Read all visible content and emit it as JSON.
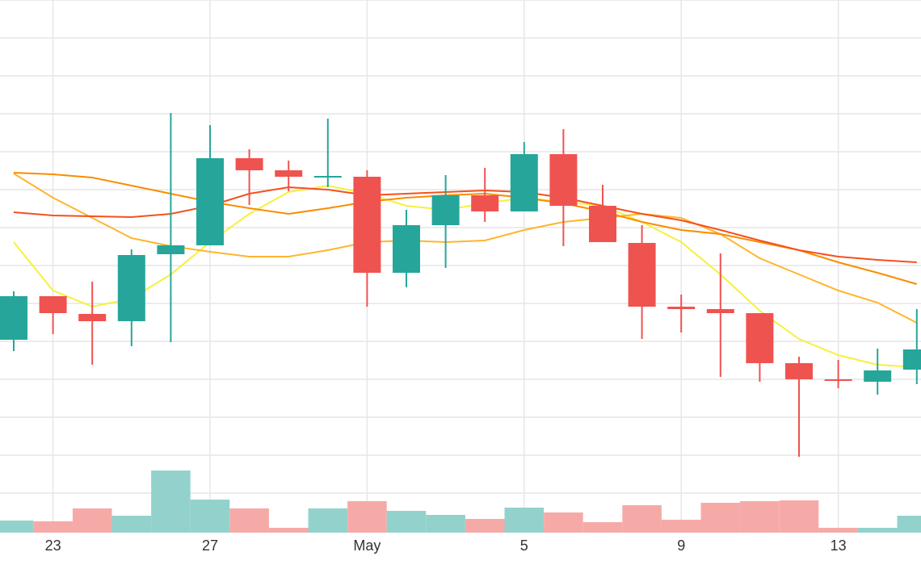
{
  "chart_data": {
    "type": "candlestick",
    "categories": [
      null,
      "23",
      null,
      null,
      null,
      "27",
      null,
      null,
      null,
      "May",
      null,
      null,
      null,
      "5",
      null,
      null,
      null,
      "9",
      null,
      null,
      null,
      "13",
      null,
      null
    ],
    "open": [
      237,
      291,
      269,
      260,
      343,
      354,
      462,
      447,
      438,
      439,
      320,
      379,
      416,
      396,
      467,
      403,
      357,
      278,
      275,
      270,
      208,
      188,
      185,
      200
    ],
    "high": [
      297,
      291,
      309,
      349,
      518,
      503,
      473,
      459,
      511,
      447,
      398,
      441,
      450,
      482,
      498,
      429,
      379,
      293,
      344,
      270,
      216,
      212,
      226,
      275
    ],
    "low": [
      223,
      244,
      206,
      229,
      234,
      354,
      404,
      421,
      426,
      278,
      302,
      326,
      383,
      396,
      353,
      358,
      238,
      246,
      191,
      185,
      92,
      177,
      169,
      182
    ],
    "close": [
      291,
      270,
      260,
      342,
      354,
      462,
      447,
      439,
      440,
      320,
      379,
      416,
      396,
      467,
      403,
      358,
      278,
      275,
      270,
      208,
      188,
      186,
      199,
      225
    ],
    "volume": [
      15,
      14,
      30,
      21,
      77,
      41,
      30,
      6,
      30,
      39,
      27,
      22,
      17,
      31,
      25,
      13,
      34,
      16,
      37,
      39,
      40,
      6,
      6,
      21
    ],
    "up_color": "#26a69a",
    "down_color": "#ef5350",
    "volume_up_color": "#93d2cc",
    "volume_down_color": "#f6aaa7",
    "lines": [
      {
        "color": "#f7f03c",
        "values": [
          358,
          298,
          278,
          288,
          318,
          358,
          393,
          420,
          428,
          418,
          403,
          398,
          406,
          413,
          408,
          403,
          383,
          358,
          318,
          273,
          238,
          218,
          206,
          203
        ]
      },
      {
        "color": "#ffb52e",
        "values": [
          443,
          413,
          388,
          363,
          353,
          346,
          340,
          340,
          348,
          358,
          360,
          358,
          360,
          373,
          383,
          388,
          393,
          388,
          368,
          338,
          318,
          298,
          283,
          258
        ]
      },
      {
        "color": "#fb8c00",
        "values": [
          444,
          442,
          438,
          428,
          418,
          408,
          400,
          393,
          400,
          408,
          413,
          416,
          418,
          413,
          406,
          396,
          383,
          373,
          368,
          358,
          348,
          333,
          320,
          306
        ]
      },
      {
        "color": "#f4511e",
        "values": [
          395,
          391,
          390,
          389,
          393,
          403,
          418,
          426,
          423,
          416,
          418,
          420,
          422,
          420,
          413,
          403,
          393,
          385,
          373,
          360,
          348,
          340,
          336,
          333
        ]
      }
    ],
    "ylim": [
      0,
      658
    ],
    "yticks": [
      0,
      47,
      94,
      141,
      188,
      235,
      282,
      329,
      376,
      423,
      470,
      517,
      564,
      611,
      658
    ],
    "volume_ylim": [
      0,
      658
    ],
    "grid": true
  }
}
